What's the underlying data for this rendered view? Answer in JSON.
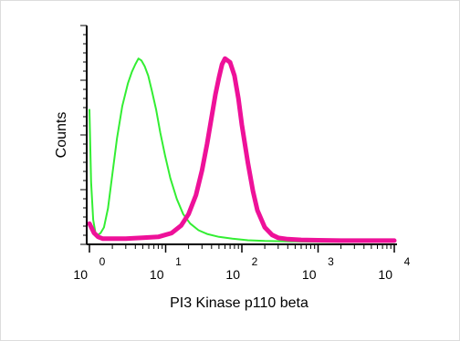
{
  "chart_data": {
    "type": "line",
    "title": "",
    "xlabel": "PI3 Kinase p110 beta",
    "ylabel": "Counts",
    "x_scale": "log",
    "xlim": [
      1,
      10000
    ],
    "ylim": [
      0,
      100
    ],
    "grid": false,
    "x_tick_labels": [
      {
        "base": "10",
        "exp": "0"
      },
      {
        "base": "10",
        "exp": "1"
      },
      {
        "base": "10",
        "exp": "2"
      },
      {
        "base": "10",
        "exp": "3"
      },
      {
        "base": "10",
        "exp": "4"
      }
    ],
    "series": [
      {
        "color": "#33ee33",
        "line_width": 2,
        "x": [
          1.0,
          1.05,
          1.12,
          1.2,
          1.3,
          1.4,
          1.55,
          1.75,
          2.0,
          2.3,
          2.7,
          3.2,
          3.6,
          4.0,
          4.4,
          4.8,
          5.3,
          5.9,
          6.6,
          7.5,
          8.5,
          9.8,
          11.5,
          14,
          17,
          21,
          27,
          35,
          50,
          75,
          120,
          200,
          400,
          1000,
          10000
        ],
        "y": [
          70,
          32,
          12,
          5,
          4,
          5,
          8,
          18,
          36,
          55,
          72,
          84,
          90,
          94,
          97,
          96,
          93,
          88,
          80,
          70,
          58,
          46,
          34,
          23,
          15,
          10,
          6.5,
          4.5,
          3,
          2,
          1.2,
          0.8,
          0.6,
          0.4,
          0.4
        ]
      },
      {
        "color": "#ee1199",
        "line_width": 5,
        "x": [
          1.0,
          1.15,
          1.3,
          1.5,
          2.0,
          3.0,
          5.0,
          8.0,
          12,
          16,
          20,
          25,
          30,
          35,
          40,
          45,
          50,
          55,
          60,
          70,
          80,
          90,
          100,
          120,
          140,
          160,
          200,
          250,
          300,
          400,
          600,
          1000,
          2000,
          5000,
          10000
        ],
        "y": [
          10,
          5,
          3,
          2,
          2,
          2,
          2.5,
          3,
          5,
          9,
          15,
          25,
          38,
          52,
          66,
          78,
          87,
          94,
          97,
          95,
          88,
          76,
          62,
          42,
          27,
          17,
          8,
          4,
          2.5,
          1.8,
          1.4,
          1.2,
          1.0,
          1.0,
          1.0
        ]
      }
    ]
  }
}
